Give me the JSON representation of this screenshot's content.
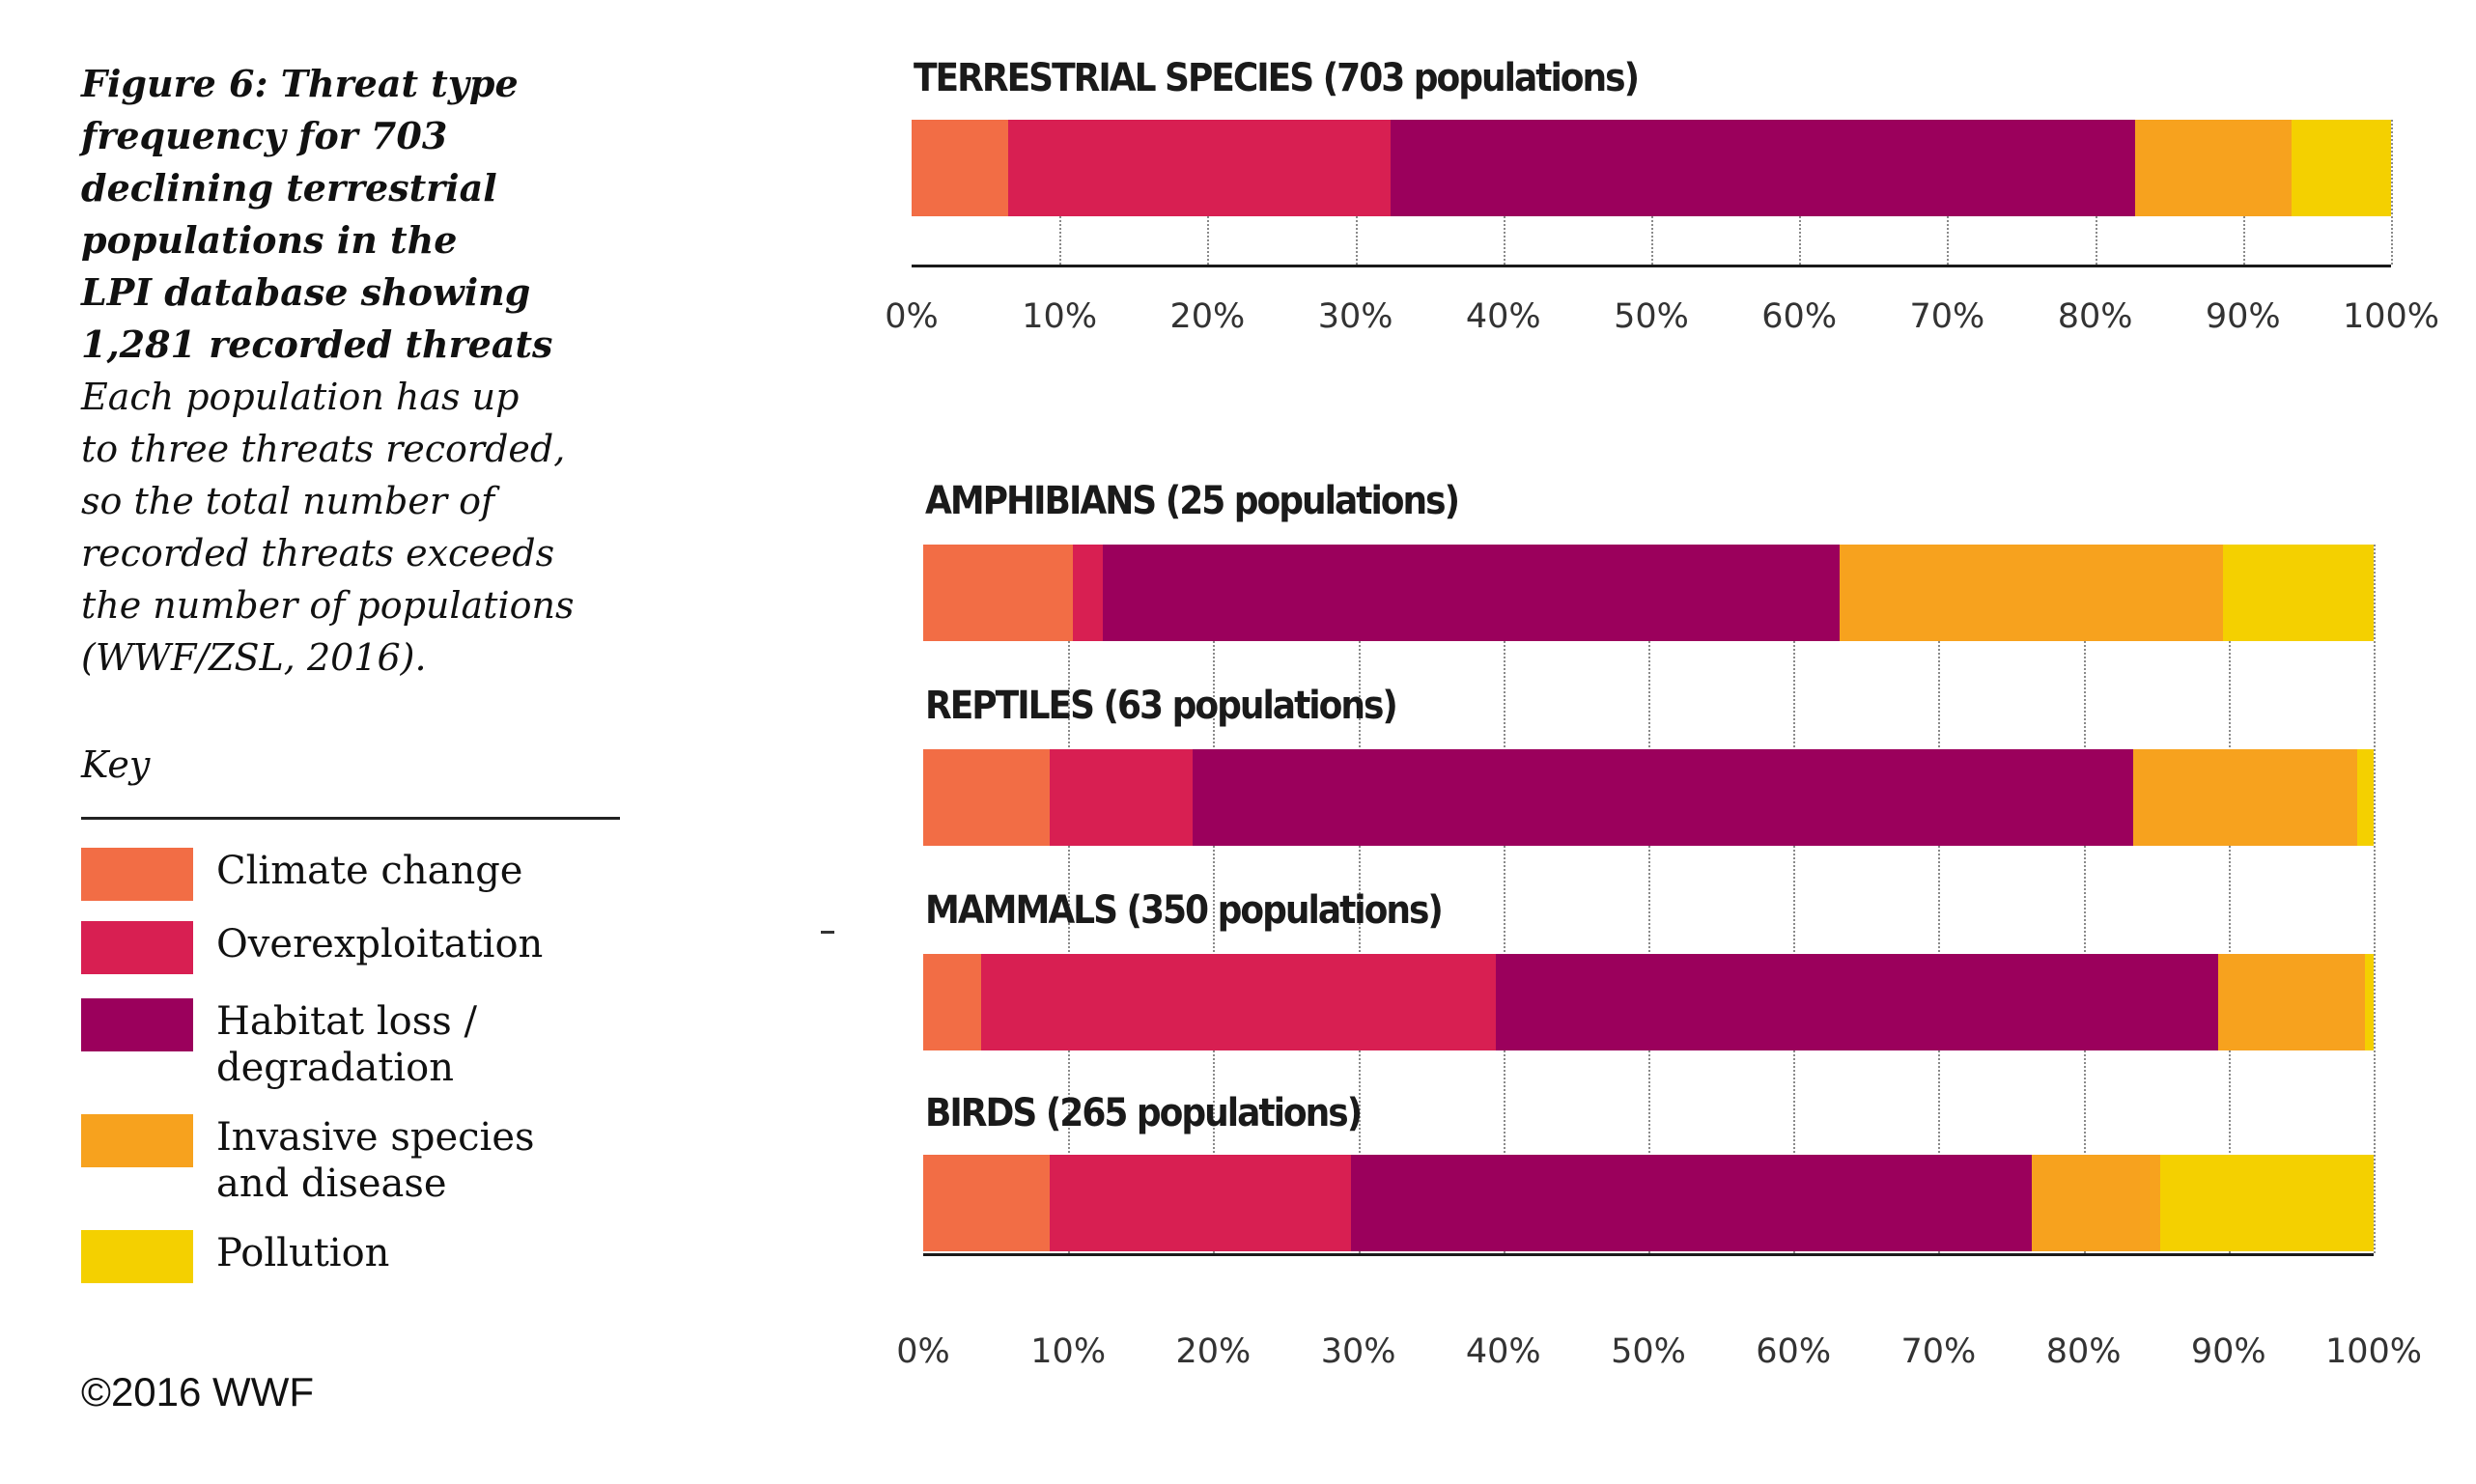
{
  "caption": {
    "title_lines": [
      "Figure 6: Threat type",
      "frequency for 703",
      "declining terrestrial",
      "populations in the",
      "LPI database showing",
      "1,281 recorded threats"
    ],
    "body_lines": [
      "Each population has up",
      "to three threats recorded,",
      "so the total number of",
      "recorded threats exceeds",
      "the number of populations",
      "(WWF/ZSL, 2016)."
    ]
  },
  "key": {
    "title": "Key",
    "items": [
      {
        "label_lines": [
          "Climate change"
        ],
        "color": "#f26d45"
      },
      {
        "label_lines": [
          "Overexploitation"
        ],
        "color": "#d81f52"
      },
      {
        "label_lines": [
          "Habitat loss /",
          "degradation"
        ],
        "color": "#9b005c"
      },
      {
        "label_lines": [
          "Invasive species",
          "and disease"
        ],
        "color": "#f7a21e"
      },
      {
        "label_lines": [
          "Pollution"
        ],
        "color": "#f4d000"
      }
    ]
  },
  "copyright": "©2016 WWF",
  "chart_data": [
    {
      "type": "bar",
      "orientation": "horizontal",
      "stacked": true,
      "percent_axis": true,
      "xlim": [
        0,
        100
      ],
      "x_ticks": [
        "0%",
        "10%",
        "20%",
        "30%",
        "40%",
        "50%",
        "60%",
        "70%",
        "80%",
        "90%",
        "100%"
      ],
      "grid": true,
      "categories": [
        "TERRESTRIAL SPECIES (703 populations)"
      ],
      "series": [
        {
          "name": "Climate change",
          "values": [
            6.5
          ]
        },
        {
          "name": "Overexploitation",
          "values": [
            25.9
          ]
        },
        {
          "name": "Habitat loss / degradation",
          "values": [
            50.3
          ]
        },
        {
          "name": "Invasive species and disease",
          "values": [
            10.6
          ]
        },
        {
          "name": "Pollution",
          "values": [
            6.7
          ]
        }
      ]
    },
    {
      "type": "bar",
      "orientation": "horizontal",
      "stacked": true,
      "percent_axis": true,
      "xlim": [
        0,
        100
      ],
      "x_ticks": [
        "0%",
        "10%",
        "20%",
        "30%",
        "40%",
        "50%",
        "60%",
        "70%",
        "80%",
        "90%",
        "100%"
      ],
      "grid": true,
      "categories": [
        "AMPHIBIANS (25 populations)",
        "REPTILES (63 populations)",
        "MAMMALS (350 populations)",
        "BIRDS (265 populations)"
      ],
      "series": [
        {
          "name": "Climate change",
          "values": [
            10.3,
            8.7,
            4.0,
            8.7
          ]
        },
        {
          "name": "Overexploitation",
          "values": [
            2.1,
            9.9,
            35.5,
            20.8
          ]
        },
        {
          "name": "Habitat loss / degradation",
          "values": [
            50.8,
            64.8,
            49.8,
            46.9
          ]
        },
        {
          "name": "Invasive species and disease",
          "values": [
            26.4,
            15.5,
            10.1,
            8.9
          ]
        },
        {
          "name": "Pollution",
          "values": [
            10.4,
            1.1,
            0.6,
            14.7
          ]
        }
      ]
    }
  ]
}
